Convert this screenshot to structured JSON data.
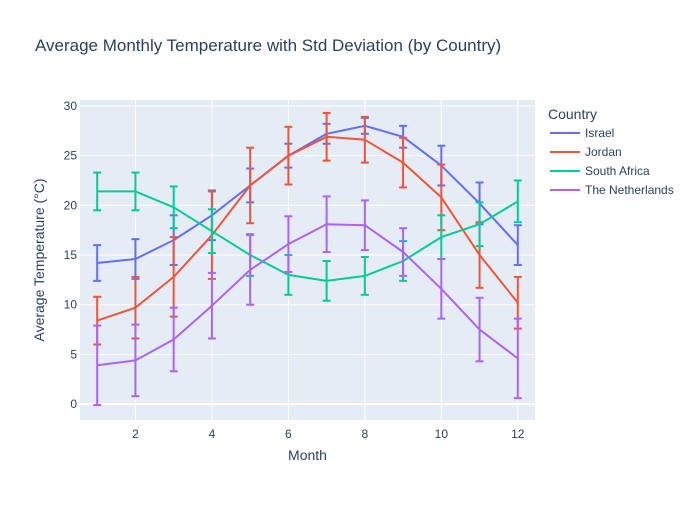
{
  "chart_data": {
    "type": "line",
    "title": "Average Monthly Temperature with Std Deviation (by Country)",
    "xlabel": "Month",
    "ylabel": "Average Temperature (°C)",
    "xlim": [
      0.55,
      12.45
    ],
    "ylim": [
      -1.6,
      30.6
    ],
    "xticks": [
      2,
      4,
      6,
      8,
      10,
      12
    ],
    "yticks": [
      0,
      5,
      10,
      15,
      20,
      25,
      30
    ],
    "grid": true,
    "legend_title": "Country",
    "legend_position": "right",
    "x": [
      1,
      2,
      3,
      4,
      5,
      6,
      7,
      8,
      9,
      10,
      11,
      12
    ],
    "series": [
      {
        "name": "Israel",
        "color": "#636efa",
        "values": [
          14.2,
          14.6,
          16.5,
          19.0,
          22.0,
          25.0,
          27.2,
          28.0,
          26.9,
          24.0,
          20.2,
          16.0
        ],
        "errors": [
          1.8,
          2.0,
          2.5,
          2.5,
          1.7,
          1.2,
          1.0,
          0.8,
          1.1,
          2.0,
          2.1,
          2.0
        ]
      },
      {
        "name": "Jordan",
        "color": "#ef553b",
        "values": [
          8.4,
          9.7,
          12.8,
          17.0,
          22.0,
          25.0,
          26.9,
          26.6,
          24.3,
          20.8,
          15.0,
          10.2
        ],
        "errors": [
          2.4,
          3.1,
          4.0,
          4.4,
          3.8,
          2.9,
          2.4,
          2.3,
          2.5,
          3.3,
          3.3,
          2.6
        ]
      },
      {
        "name": "South Africa",
        "color": "#00cc96",
        "values": [
          21.4,
          21.4,
          19.8,
          17.4,
          15.0,
          13.0,
          12.4,
          12.9,
          14.4,
          16.8,
          18.1,
          20.4
        ],
        "errors": [
          1.9,
          1.9,
          2.1,
          2.2,
          2.1,
          2.0,
          2.0,
          1.9,
          2.0,
          2.2,
          2.2,
          2.1
        ]
      },
      {
        "name": "The Netherlands",
        "color": "#ab63fa",
        "values": [
          3.9,
          4.4,
          6.5,
          9.9,
          13.5,
          16.1,
          18.1,
          18.0,
          15.3,
          11.6,
          7.5,
          4.6
        ],
        "errors": [
          4.0,
          3.6,
          3.2,
          3.3,
          3.5,
          2.8,
          2.8,
          2.5,
          2.4,
          3.0,
          3.2,
          4.0
        ]
      }
    ]
  }
}
